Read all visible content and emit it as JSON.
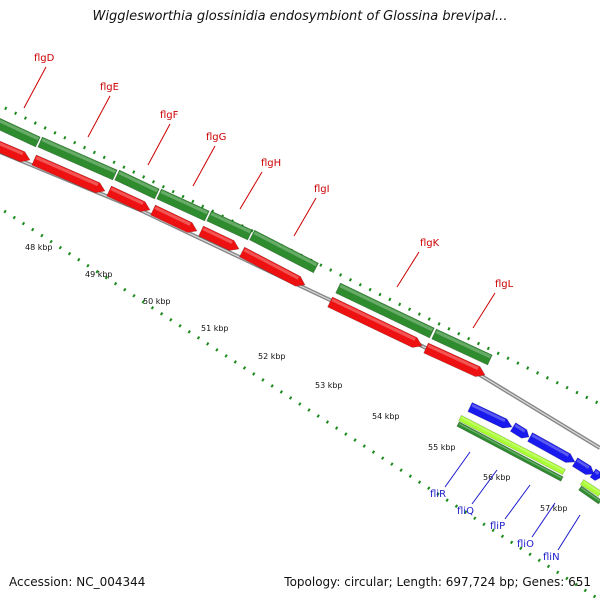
{
  "title": "Wigglesworthia glossinidia endosymbiont of Glossina brevipal...",
  "accession": "Accession: NC_004344",
  "summary": "Topology: circular; Length: 697,724 bp; Genes: 651",
  "colors": {
    "forward_block": "#2e8b2e",
    "reverse_block": "#ee1111",
    "blue_genes": "#1a1aee",
    "light_green": "#aaff33",
    "upper_labels": "#cc0000",
    "lower_labels": "#1a1acc",
    "ticks": "#1c8a1c",
    "backbone": "#888888"
  },
  "scale_labels": [
    "48 kbp",
    "49 kbp",
    "50 kbp",
    "51 kbp",
    "52 kbp",
    "53 kbp",
    "54 kbp",
    "55 kbp",
    "56 kbp",
    "57 kbp"
  ],
  "upper_genes": [
    "flgD",
    "flgE",
    "flgF",
    "flgG",
    "flgH",
    "flgI",
    "flgK",
    "flgL"
  ],
  "lower_genes": [
    "fliR",
    "fliQ",
    "fliP",
    "fliO",
    "fliN"
  ]
}
